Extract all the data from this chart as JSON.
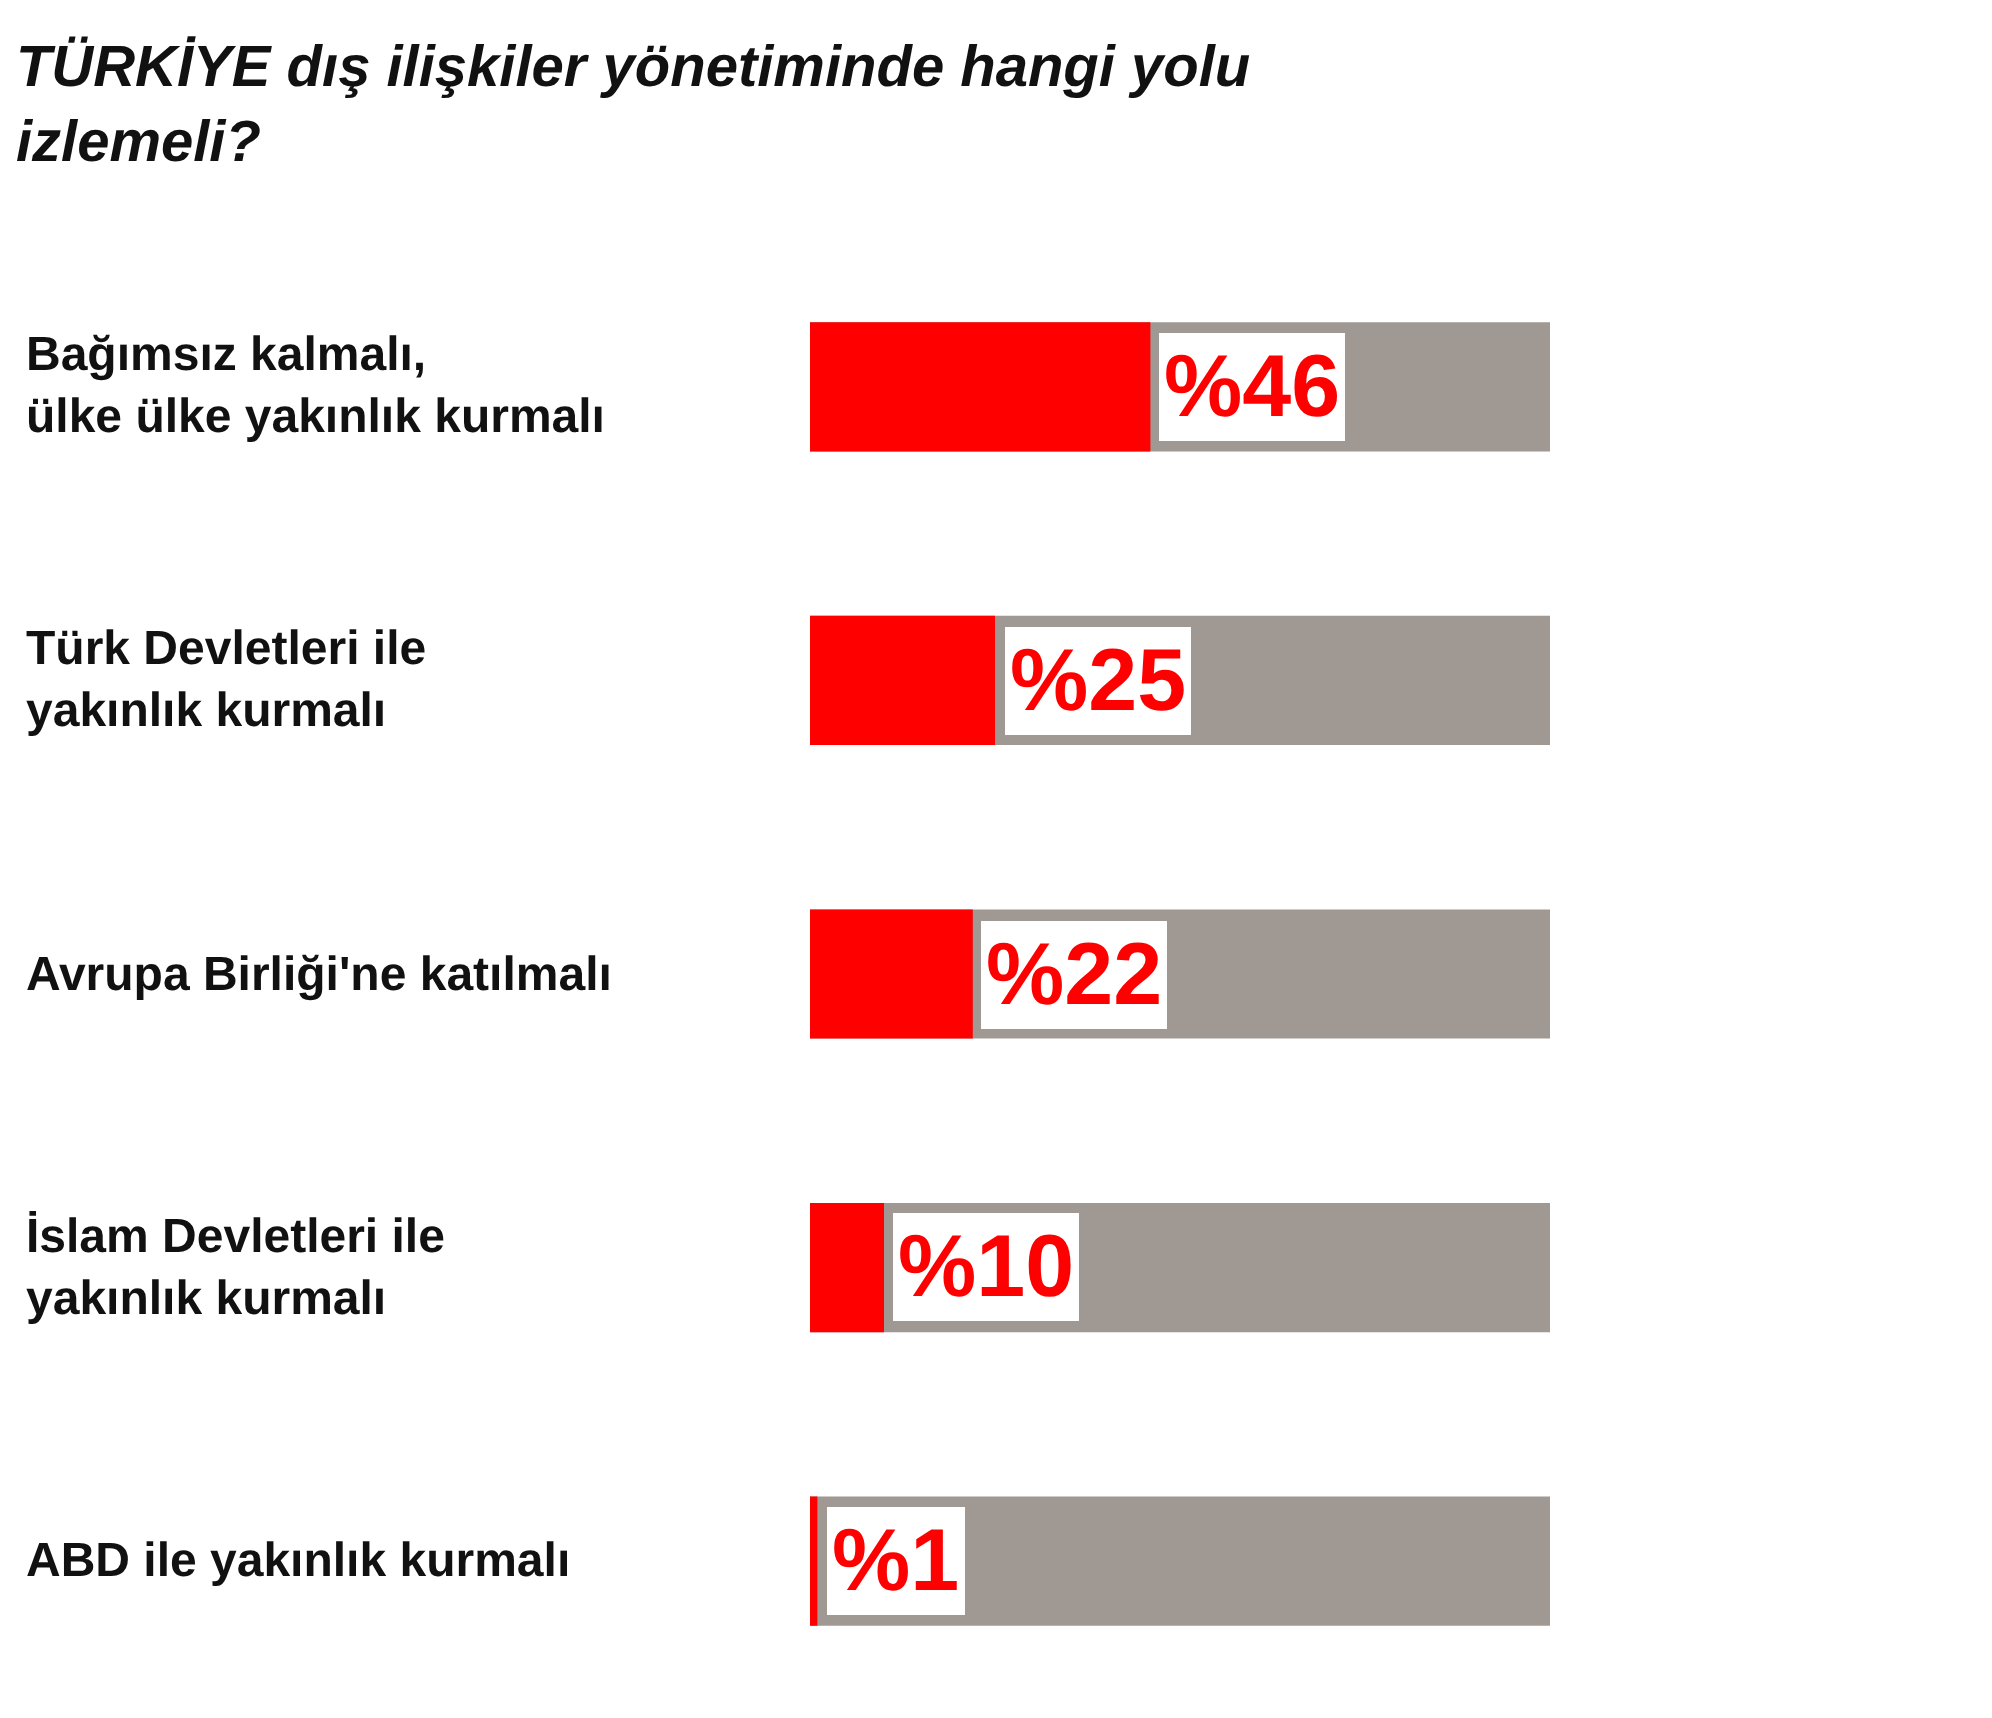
{
  "chart_data": {
    "type": "bar",
    "orientation": "horizontal",
    "title": "TÜRKİYE dış ilişkiler yönetiminde hangi yolu\nizlemeli?",
    "categories": [
      "Bağımsız kalmalı,\nülke ülke yakınlık kurmalı",
      "Türk Devletleri ile\nyakınlık kurmalı",
      "Avrupa Birliği'ne katılmalı",
      "İslam Devletleri ile\nyakınlık kurmalı",
      "ABD ile yakınlık kurmalı"
    ],
    "series": [
      {
        "color": "#ff0000",
        "values": [
          46,
          25,
          22,
          10,
          1
        ],
        "value_labels": [
          "%46",
          "%25",
          "%22",
          "%10",
          "%1"
        ]
      }
    ],
    "xlim": [
      0,
      100
    ],
    "tick_labels": false,
    "grid": false
  }
}
